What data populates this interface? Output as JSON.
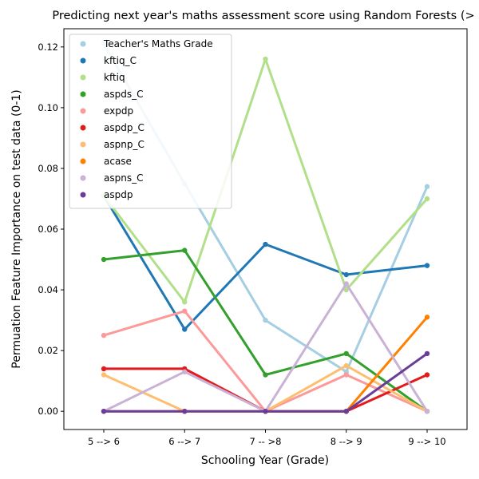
{
  "chart_data": {
    "type": "line",
    "title": "Predicting next year's maths assessment score using Random Forests (>",
    "xlabel": "Schooling Year (Grade)",
    "ylabel": "Permuation Feature Importance on test data (0-1)",
    "categories": [
      "5 --> 6",
      "6 --> 7",
      "7 -- >8",
      "8 --> 9",
      "9 --> 10"
    ],
    "ylim": [
      -0.006,
      0.126
    ],
    "yticks": [
      0.0,
      0.02,
      0.04,
      0.06,
      0.08,
      0.1,
      0.12
    ],
    "ytick_labels": [
      "0.00",
      "0.02",
      "0.04",
      "0.06",
      "0.08",
      "0.10",
      "0.12"
    ],
    "grid": false,
    "legend_position": "top-left",
    "series": [
      {
        "name": "Teacher's Maths Grade",
        "color": "#a6cee3",
        "values": [
          0.121,
          0.075,
          0.03,
          0.013,
          0.074
        ]
      },
      {
        "name": "kftiq_C",
        "color": "#1f78b4",
        "values": [
          0.071,
          0.027,
          0.055,
          0.045,
          0.048
        ]
      },
      {
        "name": "kftiq",
        "color": "#b2df8a",
        "values": [
          0.071,
          0.036,
          0.116,
          0.04,
          0.07
        ]
      },
      {
        "name": "aspds_C",
        "color": "#33a02c",
        "values": [
          0.05,
          0.053,
          0.012,
          0.019,
          0.0
        ]
      },
      {
        "name": "expdp",
        "color": "#fb9a99",
        "values": [
          0.025,
          0.033,
          0.0,
          0.012,
          0.0
        ]
      },
      {
        "name": "aspdp_C",
        "color": "#e31a1c",
        "values": [
          0.014,
          0.014,
          0.0,
          0.0,
          0.012
        ]
      },
      {
        "name": "aspnp_C",
        "color": "#fdbf6f",
        "values": [
          0.012,
          0.0,
          0.0,
          0.015,
          0.0
        ]
      },
      {
        "name": "acase",
        "color": "#ff7f00",
        "values": [
          0.0,
          0.0,
          0.0,
          0.0,
          0.031
        ]
      },
      {
        "name": "aspns_C",
        "color": "#cab2d6",
        "values": [
          0.0,
          0.013,
          0.0,
          0.042,
          0.0
        ]
      },
      {
        "name": "aspdp",
        "color": "#6a3d9a",
        "values": [
          0.0,
          0.0,
          0.0,
          0.0,
          0.019
        ]
      }
    ]
  }
}
